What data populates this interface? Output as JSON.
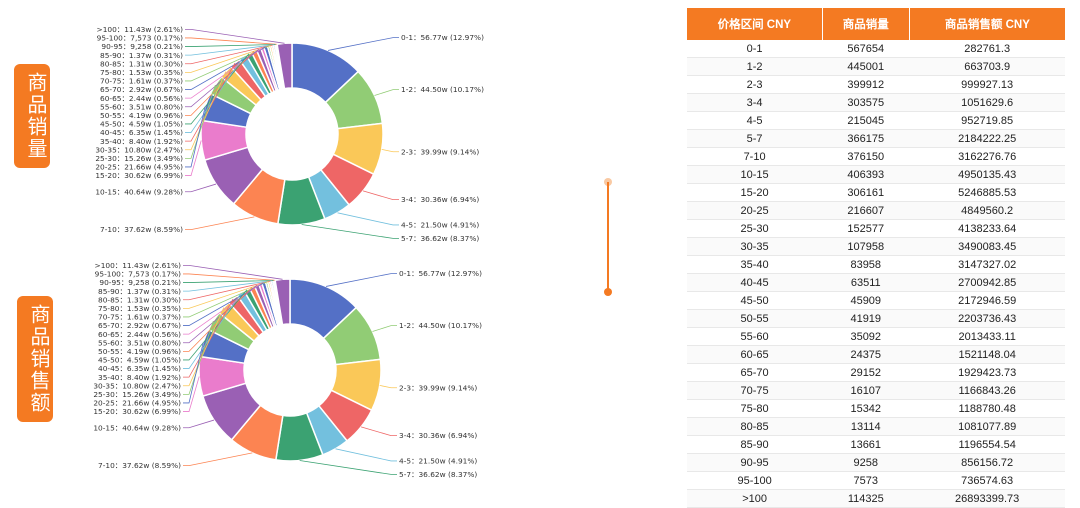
{
  "side_labels": {
    "sales": "商品销量",
    "revenue": "商品销售额"
  },
  "table": {
    "headers": [
      "价格区间 CNY",
      "商品销量",
      "商品销售额 CNY"
    ],
    "rows": [
      [
        "0-1",
        "567654",
        "282761.3"
      ],
      [
        "1-2",
        "445001",
        "663703.9"
      ],
      [
        "2-3",
        "399912",
        "999927.13"
      ],
      [
        "3-4",
        "303575",
        "1051629.6"
      ],
      [
        "4-5",
        "215045",
        "952719.85"
      ],
      [
        "5-7",
        "366175",
        "2184222.25"
      ],
      [
        "7-10",
        "376150",
        "3162276.76"
      ],
      [
        "10-15",
        "406393",
        "4950135.43"
      ],
      [
        "15-20",
        "306161",
        "5246885.53"
      ],
      [
        "20-25",
        "216607",
        "4849560.2"
      ],
      [
        "25-30",
        "152577",
        "4138233.64"
      ],
      [
        "30-35",
        "107958",
        "3490083.45"
      ],
      [
        "35-40",
        "83958",
        "3147327.02"
      ],
      [
        "40-45",
        "63511",
        "2700942.85"
      ],
      [
        "45-50",
        "45909",
        "2172946.59"
      ],
      [
        "50-55",
        "41919",
        "2203736.43"
      ],
      [
        "55-60",
        "35092",
        "2013433.11"
      ],
      [
        "60-65",
        "24375",
        "1521148.04"
      ],
      [
        "65-70",
        "29152",
        "1929423.73"
      ],
      [
        "70-75",
        "16107",
        "1166843.26"
      ],
      [
        "75-80",
        "15342",
        "1188780.48"
      ],
      [
        "80-85",
        "13114",
        "1081077.89"
      ],
      [
        "85-90",
        "13661",
        "1196554.54"
      ],
      [
        "90-95",
        "9258",
        "856156.72"
      ],
      [
        "95-100",
        "7573",
        "736574.63"
      ],
      [
        ">100",
        "114325",
        "26893399.73"
      ]
    ]
  },
  "chart_data": [
    {
      "type": "pie",
      "variant": "donut",
      "title": "",
      "categories": [
        "0-1",
        "1-2",
        "2-3",
        "3-4",
        "4-5",
        "5-7",
        "7-10",
        "10-15",
        "15-20",
        "20-25",
        "25-30",
        "30-35",
        "35-40",
        "40-45",
        "45-50",
        "50-55",
        "55-60",
        "60-65",
        "65-70",
        "70-75",
        "75-80",
        "80-85",
        "85-90",
        "90-95",
        "95-100",
        ">100"
      ],
      "values": [
        56.77,
        44.5,
        39.99,
        30.36,
        21.5,
        36.62,
        37.62,
        40.64,
        30.62,
        21.66,
        15.26,
        10.8,
        8.4,
        6.35,
        4.59,
        4.19,
        3.51,
        2.44,
        2.92,
        1.61,
        1.53,
        1.31,
        1.37,
        0.9258,
        0.7573,
        11.43
      ],
      "labels": [
        "0-1：56.77w (12.97%)",
        "1-2：44.50w (10.17%)",
        "2-3：39.99w (9.14%)",
        "3-4：30.36w (6.94%)",
        "4-5：21.50w (4.91%)",
        "5-7：36.62w (8.37%)",
        "7-10：37.62w (8.59%)",
        "10-15：40.64w (9.28%)",
        "15-20：30.62w (6.99%)",
        "20-25：21.66w (4.95%)",
        "25-30：15.26w (3.49%)",
        "30-35：10.80w (2.47%)",
        "35-40：8.40w (1.92%)",
        "40-45：6.35w (1.45%)",
        "45-50：4.59w (1.05%)",
        "50-55：4.19w (0.96%)",
        "55-60：3.51w (0.80%)",
        "60-65：2.44w (0.56%)",
        "65-70：2.92w (0.67%)",
        "70-75：1.61w (0.37%)",
        "75-80：1.53w (0.35%)",
        "80-85：1.31w (0.30%)",
        "85-90：1.37w (0.31%)",
        "90-95：9,258 (0.21%)",
        "95-100：7,573 (0.17%)",
        ">100：11.43w (2.61%)"
      ]
    },
    {
      "type": "pie",
      "variant": "donut",
      "title": "",
      "categories": [
        "0-1",
        "1-2",
        "2-3",
        "3-4",
        "4-5",
        "5-7",
        "7-10",
        "10-15",
        "15-20",
        "20-25",
        "25-30",
        "30-35",
        "35-40",
        "40-45",
        "45-50",
        "50-55",
        "55-60",
        "60-65",
        "65-70",
        "70-75",
        "75-80",
        "80-85",
        "85-90",
        "90-95",
        "95-100",
        ">100"
      ],
      "values": [
        56.77,
        44.5,
        39.99,
        30.36,
        21.5,
        36.62,
        37.62,
        40.64,
        30.62,
        21.66,
        15.26,
        10.8,
        8.4,
        6.35,
        4.59,
        4.19,
        3.51,
        2.44,
        2.92,
        1.61,
        1.53,
        1.31,
        1.37,
        0.9258,
        0.7573,
        11.43
      ],
      "labels": [
        "0-1：56.77w (12.97%)",
        "1-2：44.50w (10.17%)",
        "2-3：39.99w (9.14%)",
        "3-4：30.36w (6.94%)",
        "4-5：21.50w (4.91%)",
        "5-7：36.62w (8.37%)",
        "7-10：37.62w (8.59%)",
        "10-15：40.64w (9.28%)",
        "15-20：30.62w (6.99%)",
        "20-25：21.66w (4.95%)",
        "25-30：15.26w (3.49%)",
        "30-35：10.80w (2.47%)",
        "35-40：8.40w (1.92%)",
        "40-45：6.35w (1.45%)",
        "45-50：4.59w (1.05%)",
        "50-55：4.19w (0.96%)",
        "55-60：3.51w (0.80%)",
        "60-65：2.44w (0.56%)",
        "65-70：2.92w (0.67%)",
        "70-75：1.61w (0.37%)",
        "75-80：1.53w (0.35%)",
        "80-85：1.31w (0.30%)",
        "85-90：1.37w (0.31%)",
        "90-95：9,258 (0.21%)",
        "95-100：7,573 (0.17%)",
        ">100：11.43w (2.61%)"
      ]
    }
  ],
  "colors": [
    "#5470c6",
    "#91cc75",
    "#fac858",
    "#ee6666",
    "#73c0de",
    "#3ba272",
    "#fc8452",
    "#9a60b4",
    "#ea7ccc",
    "#5470c6",
    "#91cc75",
    "#fac858",
    "#ee6666",
    "#73c0de",
    "#3ba272",
    "#fc8452",
    "#9a60b4",
    "#ea7ccc",
    "#5470c6",
    "#91cc75",
    "#fac858",
    "#ee6666",
    "#73c0de",
    "#3ba272",
    "#fc8452",
    "#9a60b4"
  ],
  "accent": "#f47a22"
}
